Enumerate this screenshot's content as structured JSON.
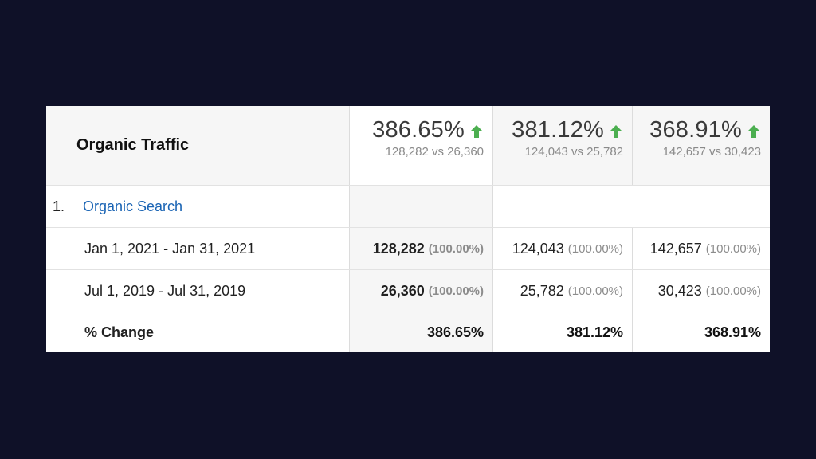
{
  "table": {
    "title": "Organic Traffic",
    "metrics": [
      {
        "percent": "386.65%",
        "comparison": "128,282 vs 26,360",
        "trend_icon": "up-arrow-icon"
      },
      {
        "percent": "381.12%",
        "comparison": "124,043 vs 25,782",
        "trend_icon": "up-arrow-icon"
      },
      {
        "percent": "368.91%",
        "comparison": "142,657 vs 30,423",
        "trend_icon": "up-arrow-icon"
      }
    ],
    "group": {
      "number": "1.",
      "label": "Organic Search"
    },
    "rows": [
      {
        "label": "Jan 1, 2021 - Jan 31, 2021",
        "cells": [
          {
            "value": "128,282",
            "share": "(100.00%)"
          },
          {
            "value": "124,043",
            "share": "(100.00%)"
          },
          {
            "value": "142,657",
            "share": "(100.00%)"
          }
        ]
      },
      {
        "label": "Jul 1, 2019 - Jul 31, 2019",
        "cells": [
          {
            "value": "26,360",
            "share": "(100.00%)"
          },
          {
            "value": "25,782",
            "share": "(100.00%)"
          },
          {
            "value": "30,423",
            "share": "(100.00%)"
          }
        ]
      }
    ],
    "change": {
      "label": "% Change",
      "values": [
        "386.65%",
        "381.12%",
        "368.91%"
      ]
    }
  },
  "colors": {
    "page_background": "#0f1128",
    "trend_up": "#4caf50",
    "link": "#1a64b4"
  }
}
